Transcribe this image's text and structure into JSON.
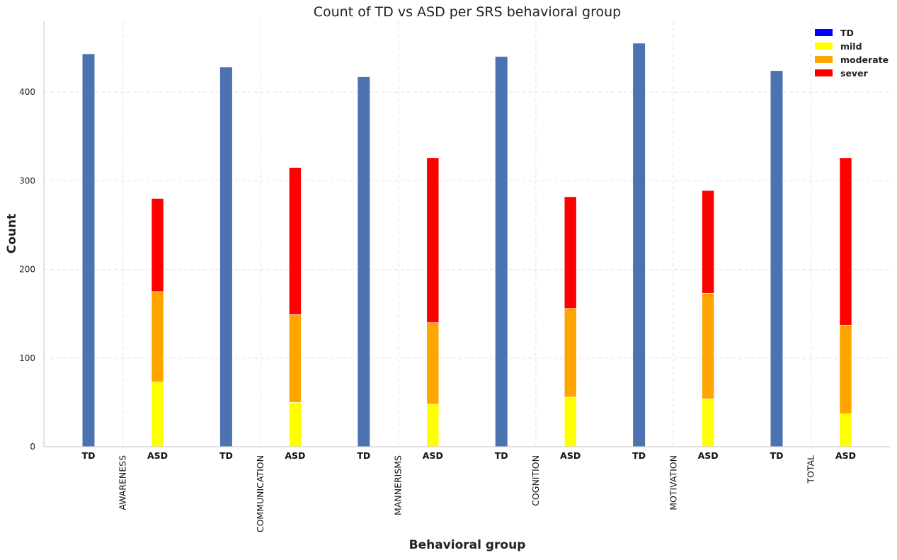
{
  "chart_data": {
    "type": "bar",
    "title": "Count of TD vs ASD per SRS behavioral group",
    "xlabel": "Behavioral group",
    "ylabel": "Count",
    "ylim": [
      0,
      480
    ],
    "yticks": [
      0,
      100,
      200,
      300,
      400
    ],
    "grid": true,
    "legend_position": "top-right",
    "bar_labels": {
      "td": "TD",
      "asd": "ASD"
    },
    "groups": [
      "AWARENESS",
      "COMMUNICATION",
      "MANNERISMS",
      "COGNITION",
      "MOTIVATION",
      "TOTAL"
    ],
    "td_values": [
      443,
      428,
      417,
      440,
      455,
      424
    ],
    "asd_stack": [
      {
        "name": "mild",
        "color": "#ffff00",
        "values": [
          73,
          50,
          48,
          56,
          54,
          37
        ]
      },
      {
        "name": "moderate",
        "color": "#ffa500",
        "values": [
          102,
          99,
          92,
          100,
          119,
          100
        ]
      },
      {
        "name": "sever",
        "color": "#ff0000",
        "values": [
          105,
          166,
          186,
          126,
          116,
          189
        ]
      }
    ],
    "legend": [
      {
        "name": "TD",
        "color": "#0000ff"
      },
      {
        "name": "mild",
        "color": "#ffff00"
      },
      {
        "name": "moderate",
        "color": "#ffa500"
      },
      {
        "name": "sever",
        "color": "#ff0000"
      }
    ],
    "td_bar_color": "#4c72b0"
  }
}
